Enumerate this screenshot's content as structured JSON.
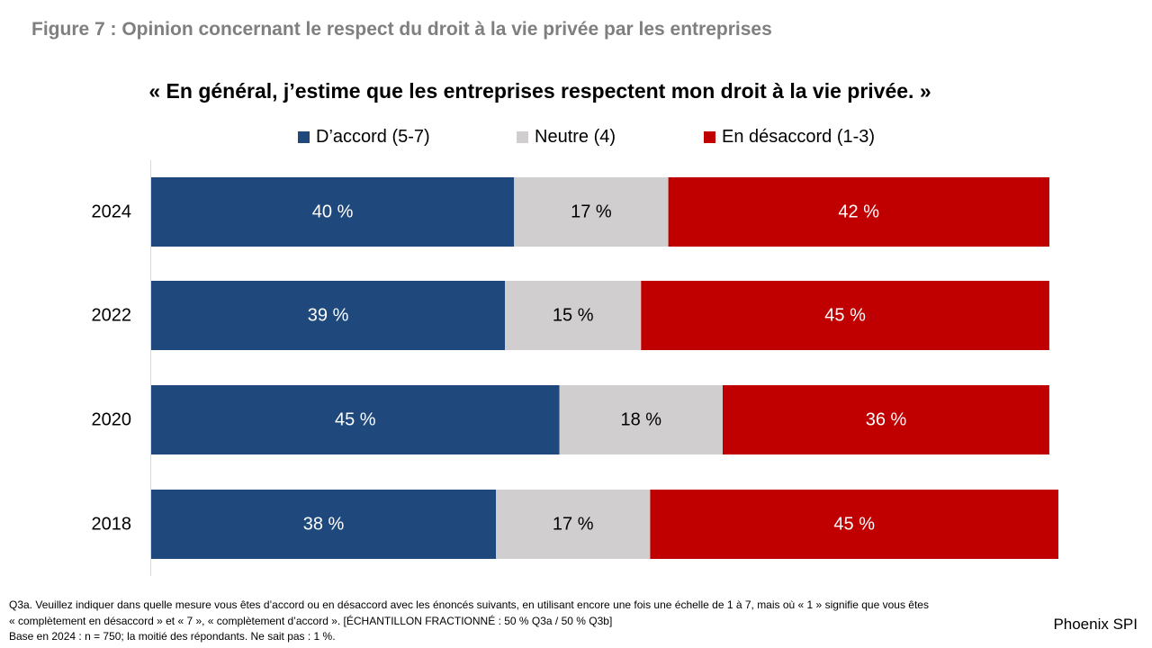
{
  "figure_title": "Figure 7 : Opinion concernant le respect du droit à la vie privée par les entreprises",
  "source": "Phoenix SPI",
  "footnote": {
    "line1": "Q3a. Veuillez indiquer dans quelle mesure vous êtes d’accord ou en désaccord avec les énoncés suivants, en utilisant encore une fois une échelle de 1 à 7, mais où « 1 » signifie que vous êtes",
    "line2": "« complètement en désaccord » et « 7 », « complètement d’accord ». [ÉCHANTILLON FRACTIONNÉ : 50 % Q3a / 50 % Q3b]",
    "line3": "Base en 2024 : n = 750; la moitié des répondants. Ne sait pas : 1 %."
  },
  "chart_data": {
    "type": "bar",
    "orientation": "horizontal",
    "stacked": true,
    "title": "« En général, j’estime que les entreprises respectent mon droit à la vie privée. »",
    "categories": [
      "2024",
      "2022",
      "2020",
      "2018"
    ],
    "series": [
      {
        "name": "D’accord (5-7)",
        "color": "#1f497d",
        "values": [
          40,
          39,
          45,
          38
        ],
        "labels": [
          "40 %",
          "39 %",
          "45 %",
          "38 %"
        ],
        "label_color": "#ffffff"
      },
      {
        "name": "Neutre (4)",
        "color": "#d0cece",
        "values": [
          17,
          15,
          18,
          17
        ],
        "labels": [
          "17 %",
          "15 %",
          "18 %",
          "17 %"
        ],
        "label_color": "#000000"
      },
      {
        "name": "En désaccord (1-3)",
        "color": "#c00000",
        "values": [
          42,
          45,
          36,
          45
        ],
        "labels": [
          "42 %",
          "45 %",
          "36 %",
          "45 %"
        ],
        "label_color": "#ffffff"
      }
    ],
    "xlim": [
      0,
      100
    ],
    "legend_position": "top"
  }
}
